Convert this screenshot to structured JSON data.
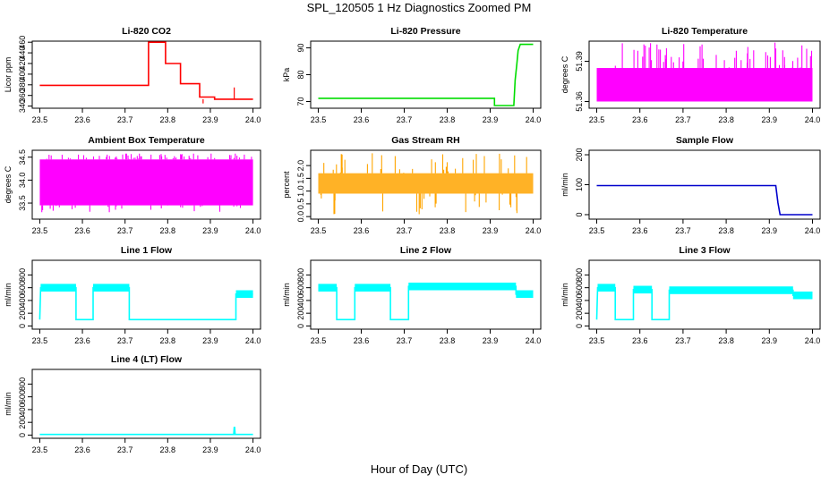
{
  "title": "SPL_120505  1 Hz Diagnostics Zoomed PM",
  "xlabel": "Hour of Day (UTC)",
  "chart_data": [
    {
      "type": "line",
      "title": "Li-820 CO2",
      "ylabel": "Licor ppm",
      "color": "#ff0000",
      "xlim": [
        23.5,
        24.0
      ],
      "ylim": [
        336,
        462
      ],
      "xticks": [
        "23.5",
        "23.6",
        "23.7",
        "23.8",
        "23.9",
        "24.0"
      ],
      "yticks": [
        "340",
        "360",
        "380",
        "400",
        "420",
        "440",
        "460"
      ],
      "series": [
        {
          "x": [
            23.5,
            23.755,
            23.755,
            23.795,
            23.795,
            23.83,
            23.83,
            23.875,
            23.875,
            23.91,
            23.91,
            24.0
          ],
          "y": [
            379,
            379,
            460,
            460,
            420,
            420,
            382,
            382,
            357,
            357,
            353,
            353
          ]
        }
      ],
      "spikes": [
        {
          "x": 23.956,
          "y": 375
        },
        {
          "x": 23.883,
          "y": 345
        }
      ]
    },
    {
      "type": "line",
      "title": "Li-820 Pressure",
      "ylabel": "kPa",
      "color": "#00dd00",
      "xlim": [
        23.5,
        24.0
      ],
      "ylim": [
        67.5,
        92.5
      ],
      "xticks": [
        "23.5",
        "23.6",
        "23.7",
        "23.8",
        "23.9",
        "24.0"
      ],
      "yticks": [
        "70",
        "80",
        "90"
      ],
      "series": [
        {
          "x": [
            23.5,
            23.91,
            23.91,
            23.955,
            23.958,
            23.962,
            23.965,
            23.97,
            24.0
          ],
          "y": [
            71.2,
            71.2,
            68.5,
            68.5,
            78,
            84,
            89,
            91.3,
            91.3
          ]
        }
      ]
    },
    {
      "type": "line",
      "title": "Li-820 Temperature",
      "ylabel": "degrees C",
      "color": "#ff00ff",
      "xlim": [
        23.5,
        24.0
      ],
      "ylim": [
        51.355,
        51.405
      ],
      "xticks": [
        "23.5",
        "23.6",
        "23.7",
        "23.8",
        "23.9",
        "24.0"
      ],
      "yticks": [
        "51.36",
        "51.39"
      ],
      "band": {
        "low": 51.36,
        "high": 51.385,
        "spike_high": 51.404
      }
    },
    {
      "type": "line",
      "title": "Ambient Box Temperature",
      "ylabel": "degrees C",
      "color": "#ff00ff",
      "xlim": [
        23.5,
        24.0
      ],
      "ylim": [
        33.15,
        34.65
      ],
      "xticks": [
        "23.5",
        "23.6",
        "23.7",
        "23.8",
        "23.9",
        "24.0"
      ],
      "yticks": [
        "33.5",
        "34.0",
        "34.5"
      ],
      "band": {
        "low": 33.45,
        "high": 34.45,
        "spike_low": 33.3,
        "spike_high": 34.58
      }
    },
    {
      "type": "scatter",
      "title": "Gas Stream RH",
      "ylabel": "percent",
      "color": "#ffa500",
      "xlim": [
        23.5,
        24.0
      ],
      "ylim": [
        -0.1,
        2.6
      ],
      "xticks": [
        "23.5",
        "23.6",
        "23.7",
        "23.8",
        "23.9",
        "24.0"
      ],
      "yticks": [
        "0.0",
        "0.5",
        "1.0",
        "1.5",
        "2.0"
      ],
      "band": {
        "low": 0.9,
        "high": 1.7,
        "spike_low": 0.0,
        "spike_high": 2.5
      }
    },
    {
      "type": "line",
      "title": "Sample Flow",
      "ylabel": "ml/min",
      "color": "#0000cc",
      "xlim": [
        23.5,
        24.0
      ],
      "ylim": [
        -15,
        215
      ],
      "xticks": [
        "23.5",
        "23.6",
        "23.7",
        "23.8",
        "23.9",
        "24.0"
      ],
      "yticks": [
        "0",
        "100",
        "200"
      ],
      "series": [
        {
          "x": [
            23.5,
            23.915,
            23.92,
            23.925,
            24.0
          ],
          "y": [
            97,
            97,
            40,
            0,
            0
          ]
        }
      ]
    },
    {
      "type": "line",
      "title": "Line 1 Flow",
      "ylabel": "ml/min",
      "color": "#00ffff",
      "xlim": [
        23.5,
        24.0
      ],
      "ylim": [
        -50,
        1030
      ],
      "xticks": [
        "23.5",
        "23.6",
        "23.7",
        "23.8",
        "23.9",
        "24.0"
      ],
      "yticks": [
        "0",
        "200",
        "400",
        "600",
        "800"
      ],
      "series": [
        {
          "x": [
            23.5,
            23.502,
            23.585,
            23.585,
            23.625,
            23.625,
            23.71,
            23.71,
            23.96,
            23.96,
            24.0
          ],
          "y": [
            100,
            600,
            600,
            100,
            100,
            600,
            600,
            100,
            100,
            500,
            500
          ]
        }
      ]
    },
    {
      "type": "line",
      "title": "Line 2 Flow",
      "ylabel": "ml/min",
      "color": "#00ffff",
      "xlim": [
        23.5,
        24.0
      ],
      "ylim": [
        -50,
        1030
      ],
      "xticks": [
        "23.5",
        "23.6",
        "23.7",
        "23.8",
        "23.9",
        "24.0"
      ],
      "yticks": [
        "0",
        "200",
        "400",
        "600",
        "800"
      ],
      "series": [
        {
          "x": [
            23.5,
            23.543,
            23.543,
            23.585,
            23.585,
            23.668,
            23.668,
            23.71,
            23.71,
            23.96,
            23.96,
            24.0
          ],
          "y": [
            600,
            600,
            100,
            100,
            600,
            600,
            100,
            100,
            620,
            620,
            500,
            500
          ]
        }
      ]
    },
    {
      "type": "line",
      "title": "Line 3 Flow",
      "ylabel": "ml/min",
      "color": "#00ffff",
      "xlim": [
        23.5,
        24.0
      ],
      "ylim": [
        -50,
        1030
      ],
      "xticks": [
        "23.5",
        "23.6",
        "23.7",
        "23.8",
        "23.9",
        "24.0"
      ],
      "yticks": [
        "0",
        "200",
        "400",
        "600",
        "800"
      ],
      "series": [
        {
          "x": [
            23.5,
            23.502,
            23.543,
            23.543,
            23.585,
            23.585,
            23.628,
            23.628,
            23.668,
            23.668,
            23.955,
            23.955,
            24.0
          ],
          "y": [
            100,
            600,
            600,
            100,
            100,
            570,
            570,
            100,
            100,
            560,
            560,
            480,
            480
          ]
        }
      ]
    },
    {
      "type": "line",
      "title": "Line 4 (LT) Flow",
      "ylabel": "ml/min",
      "color": "#00ffff",
      "xlim": [
        23.5,
        24.0
      ],
      "ylim": [
        -50,
        1030
      ],
      "xticks": [
        "23.5",
        "23.6",
        "23.7",
        "23.8",
        "23.9",
        "24.0"
      ],
      "yticks": [
        "0",
        "200",
        "400",
        "600",
        "800"
      ],
      "series": [
        {
          "x": [
            23.5,
            23.955,
            23.956,
            23.957,
            23.958,
            24.0
          ],
          "y": [
            10,
            10,
            120,
            120,
            10,
            10
          ]
        }
      ]
    }
  ]
}
